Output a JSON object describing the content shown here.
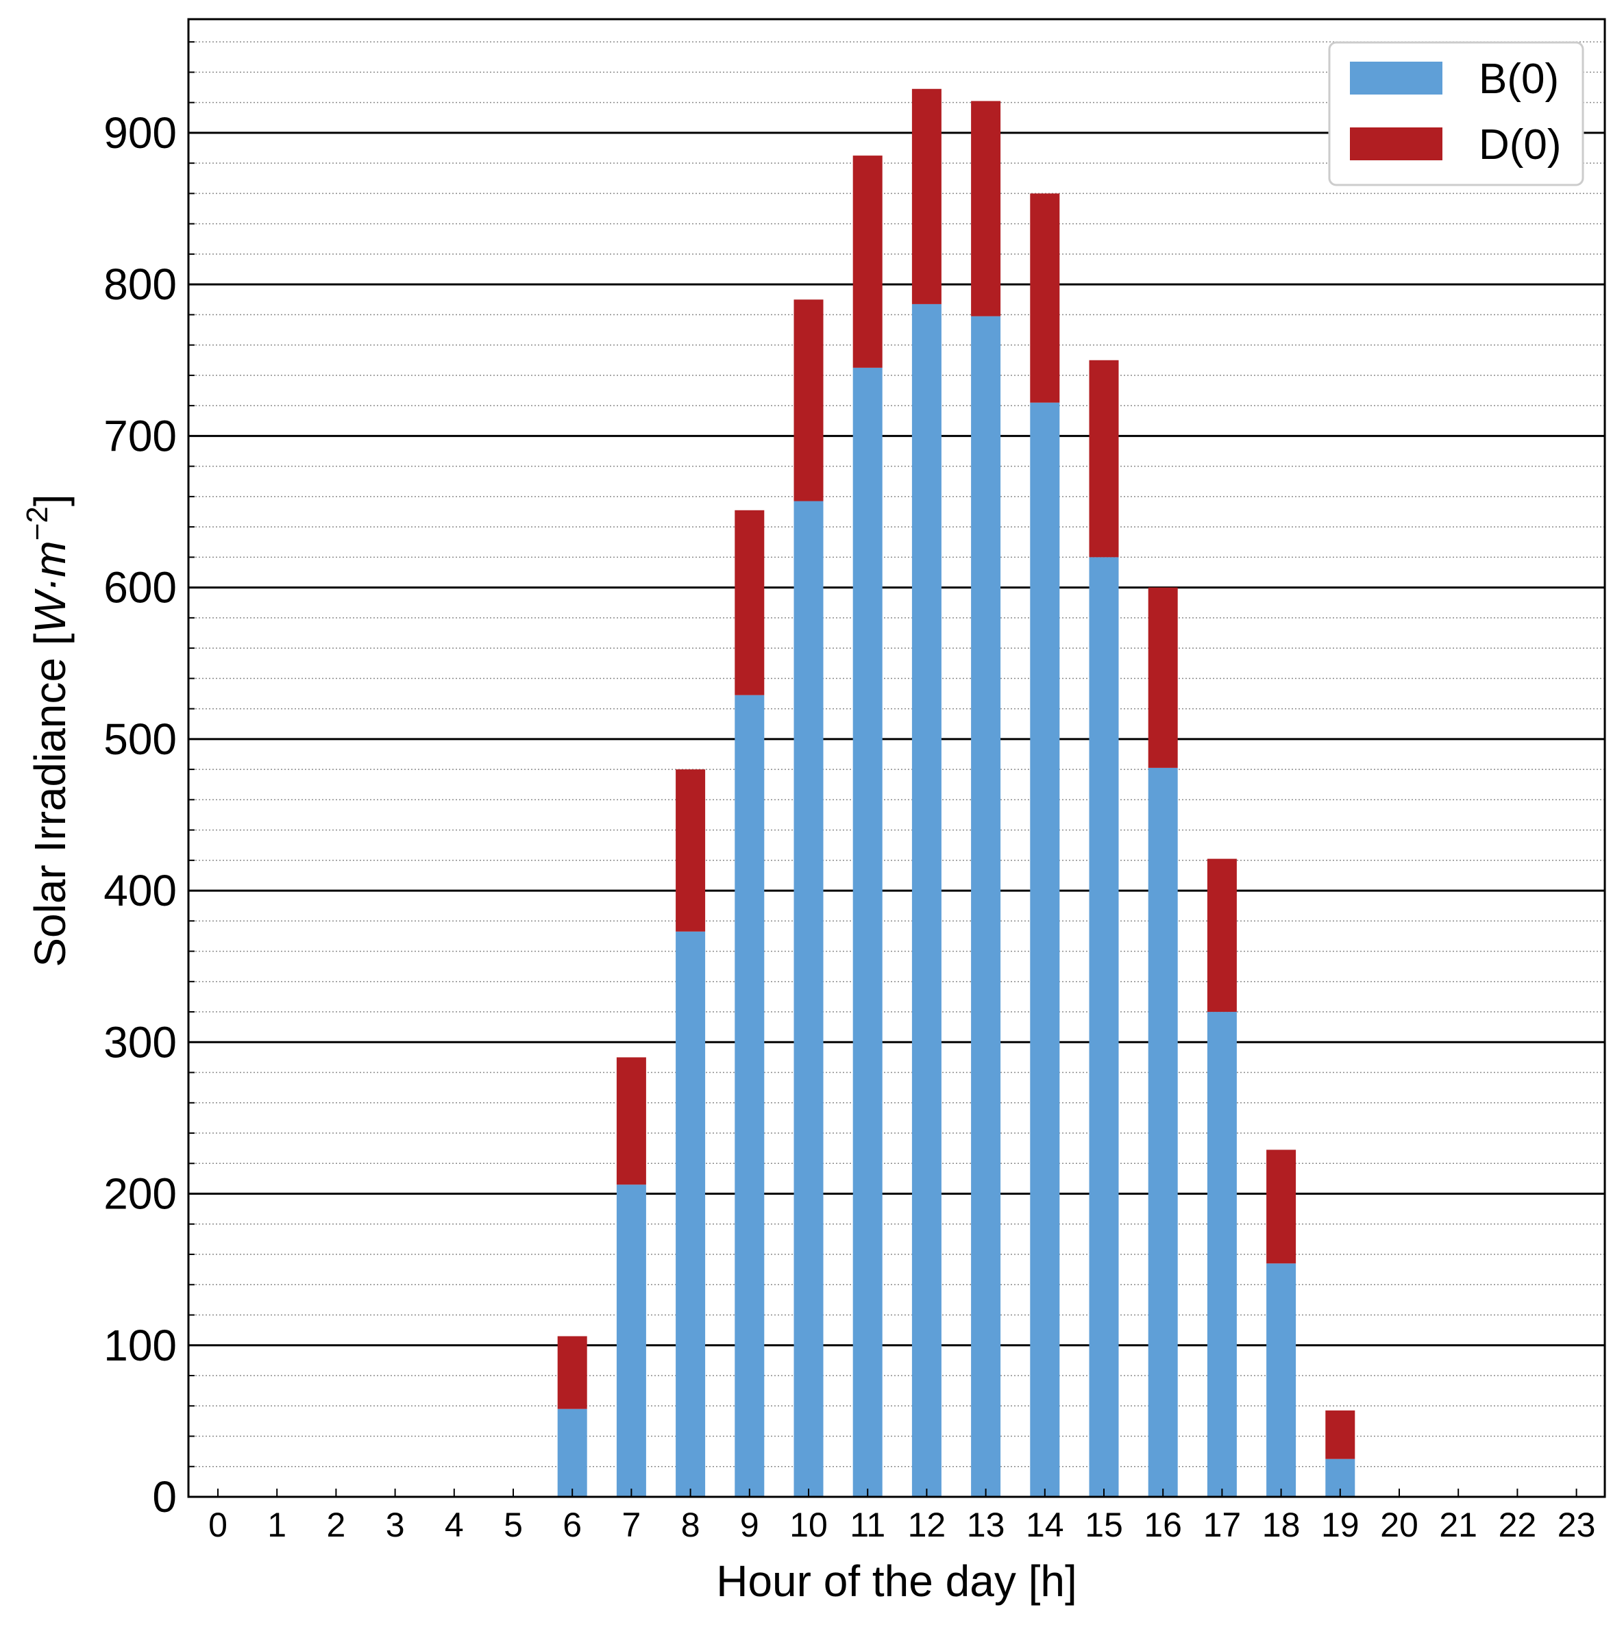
{
  "chart_data": {
    "type": "bar",
    "stacked": true,
    "xlabel": "Hour of the day [h]",
    "ylabel": {
      "text": "Solar Irradiance [",
      "unit_italic": "W·m",
      "exponent": "−2",
      "close": "]"
    },
    "ylim": [
      0,
      975
    ],
    "yticks": [
      0,
      100,
      200,
      300,
      400,
      500,
      600,
      700,
      800,
      900
    ],
    "y_minor_step": 20,
    "grid": {
      "major": "solid black",
      "minor": "dotted gray"
    },
    "categories": [
      "0",
      "1",
      "2",
      "3",
      "4",
      "5",
      "6",
      "7",
      "8",
      "9",
      "10",
      "11",
      "12",
      "13",
      "14",
      "15",
      "16",
      "17",
      "18",
      "19",
      "20",
      "21",
      "22",
      "23"
    ],
    "series": [
      {
        "name": "B(0)",
        "color": "#5f9fd7",
        "values": [
          0,
          0,
          0,
          0,
          0,
          0,
          58,
          206,
          373,
          529,
          657,
          745,
          787,
          779,
          722,
          620,
          481,
          320,
          154,
          25,
          0,
          0,
          0,
          0
        ]
      },
      {
        "name": "D(0)",
        "color": "#b11e22",
        "values": [
          0,
          0,
          0,
          0,
          0,
          0,
          48,
          84,
          107,
          122,
          133,
          140,
          142,
          142,
          138,
          130,
          119,
          101,
          75,
          32,
          0,
          0,
          0,
          0
        ]
      }
    ],
    "legend": {
      "position": "top-right"
    }
  }
}
